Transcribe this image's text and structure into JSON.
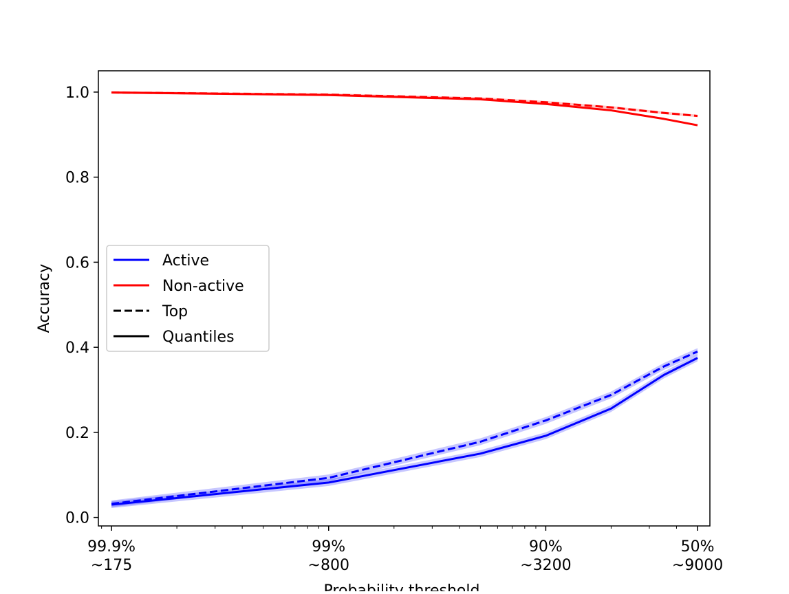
{
  "chart_data": {
    "type": "line",
    "title": "",
    "xlabel": "Probability threshold",
    "ylabel": "Accuracy",
    "x_scale": "log",
    "x_quantity": "probability threshold (upper tail %)",
    "x_ticks": [
      {
        "value": 0.1,
        "label_top": "99.9%",
        "label_bottom": "~175"
      },
      {
        "value": 1,
        "label_top": "99%",
        "label_bottom": "~800"
      },
      {
        "value": 10,
        "label_top": "90%",
        "label_bottom": "~3200"
      },
      {
        "value": 50,
        "label_top": "50%",
        "label_bottom": "~9000"
      }
    ],
    "xlim": [
      0.087,
      57
    ],
    "ylim": [
      -0.02,
      1.05
    ],
    "y_ticks": [
      0.0,
      0.2,
      0.4,
      0.6,
      0.8,
      1.0
    ],
    "y_tick_labels": [
      "0.0",
      "0.2",
      "0.4",
      "0.6",
      "0.8",
      "1.0"
    ],
    "grid": false,
    "legend": {
      "placement": "center-left",
      "entries": [
        {
          "label": "Active",
          "color": "#0000ff",
          "style": "solid"
        },
        {
          "label": "Non-active",
          "color": "#ff0000",
          "style": "solid"
        },
        {
          "label": "Top",
          "color": "#000000",
          "style": "dashed"
        },
        {
          "label": "Quantiles",
          "color": "#000000",
          "style": "solid"
        }
      ]
    },
    "series": [
      {
        "group": "Active",
        "method": "Quantiles",
        "color": "#0000ff",
        "style": "solid",
        "x": [
          0.1,
          1,
          5,
          10,
          20,
          35,
          50
        ],
        "y": [
          0.03,
          0.082,
          0.15,
          0.192,
          0.256,
          0.335,
          0.375
        ],
        "band": 0.008
      },
      {
        "group": "Active",
        "method": "Top",
        "color": "#0000ff",
        "style": "dashed",
        "x": [
          0.1,
          1,
          5,
          10,
          20,
          35,
          50
        ],
        "y": [
          0.032,
          0.093,
          0.178,
          0.228,
          0.288,
          0.355,
          0.39
        ],
        "band": 0.008
      },
      {
        "group": "Non-active",
        "method": "Quantiles",
        "color": "#ff0000",
        "style": "solid",
        "x": [
          0.1,
          1,
          5,
          10,
          20,
          35,
          50
        ],
        "y": [
          0.999,
          0.993,
          0.983,
          0.972,
          0.957,
          0.937,
          0.922
        ],
        "band": 0.002
      },
      {
        "group": "Non-active",
        "method": "Top",
        "color": "#ff0000",
        "style": "dashed",
        "x": [
          0.1,
          1,
          5,
          10,
          20,
          35,
          50
        ],
        "y": [
          0.999,
          0.994,
          0.985,
          0.976,
          0.964,
          0.951,
          0.944
        ],
        "band": 0.003
      }
    ]
  }
}
